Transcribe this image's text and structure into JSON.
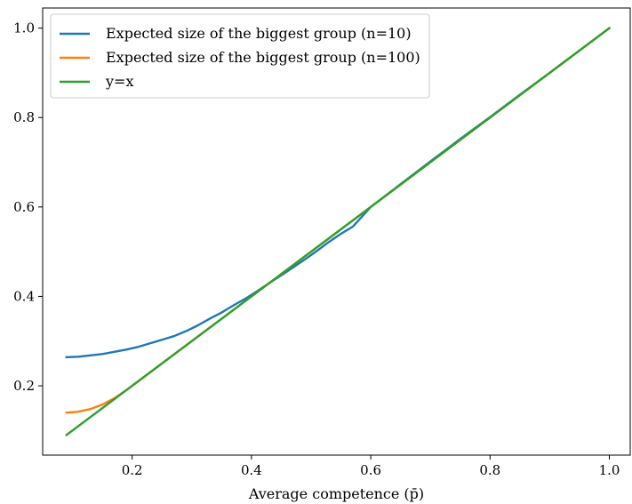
{
  "chart_data": {
    "type": "line",
    "title": "",
    "xlabel": "Average competence (p̄)",
    "ylabel": "",
    "xlim": [
      0.05,
      1.035
    ],
    "ylim": [
      0.045,
      1.045
    ],
    "x_ticks": [
      0.2,
      0.4,
      0.6,
      0.8,
      1.0
    ],
    "x_tick_labels": [
      "0.2",
      "0.4",
      "0.6",
      "0.8",
      "1.0"
    ],
    "y_ticks": [
      0.2,
      0.4,
      0.6,
      0.8,
      1.0
    ],
    "y_tick_labels": [
      "0.2",
      "0.4",
      "0.6",
      "0.8",
      "1.0"
    ],
    "grid": false,
    "legend_position": "upper-left",
    "series": [
      {
        "name": "Expected size of the biggest group (n=10)",
        "color": "#1f77b4",
        "x": [
          0.09,
          0.11,
          0.13,
          0.15,
          0.17,
          0.19,
          0.21,
          0.23,
          0.25,
          0.27,
          0.29,
          0.31,
          0.33,
          0.35,
          0.37,
          0.39,
          0.41,
          0.43,
          0.45,
          0.47,
          0.49,
          0.51,
          0.53,
          0.55,
          0.57,
          0.6,
          0.65,
          0.7,
          0.75,
          0.8,
          0.85,
          0.9,
          0.95,
          1.0
        ],
        "y": [
          0.264,
          0.265,
          0.268,
          0.271,
          0.276,
          0.281,
          0.287,
          0.295,
          0.303,
          0.311,
          0.322,
          0.335,
          0.35,
          0.364,
          0.38,
          0.395,
          0.412,
          0.43,
          0.447,
          0.465,
          0.483,
          0.502,
          0.522,
          0.54,
          0.556,
          0.6,
          0.651,
          0.702,
          0.752,
          0.801,
          0.851,
          0.9,
          0.95,
          1.0
        ]
      },
      {
        "name": "Expected size of the biggest group (n=100)",
        "color": "#ff7f0e",
        "x": [
          0.09,
          0.11,
          0.13,
          0.15,
          0.17,
          0.19,
          0.21,
          0.25,
          0.3,
          0.4,
          0.5,
          0.6,
          0.7,
          0.8,
          0.9,
          1.0
        ],
        "y": [
          0.14,
          0.142,
          0.148,
          0.158,
          0.172,
          0.19,
          0.21,
          0.25,
          0.3,
          0.4,
          0.5,
          0.6,
          0.7,
          0.8,
          0.9,
          1.0
        ]
      },
      {
        "name": "y=x",
        "color": "#2ca02c",
        "x": [
          0.09,
          1.0
        ],
        "y": [
          0.09,
          1.0
        ]
      }
    ]
  }
}
